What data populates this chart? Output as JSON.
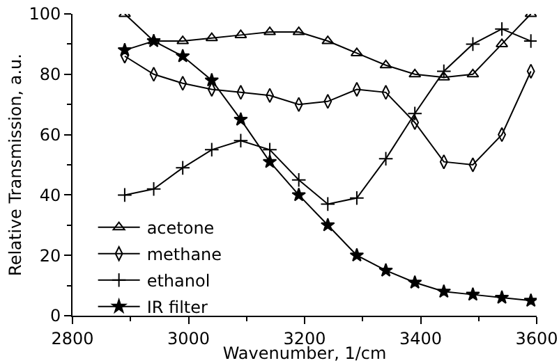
{
  "chart_data": {
    "type": "line",
    "xlabel": "Wavenumber, 1/cm",
    "ylabel": "Relative Transmission, a.u.",
    "x": [
      2890,
      2940,
      2990,
      3040,
      3090,
      3140,
      3190,
      3240,
      3290,
      3340,
      3390,
      3440,
      3490,
      3540,
      3590
    ],
    "series": [
      {
        "name": "acetone",
        "color": "#000000",
        "marker": "triangle",
        "values": [
          100,
          91,
          91,
          92,
          93,
          94,
          94,
          91,
          87,
          83,
          80,
          79,
          80,
          90,
          100
        ]
      },
      {
        "name": "methane",
        "color": "#000000",
        "marker": "diamond",
        "values": [
          86,
          80,
          77,
          75,
          74,
          73,
          70,
          71,
          75,
          74,
          64,
          51,
          50,
          60,
          81
        ]
      },
      {
        "name": "ethanol",
        "color": "#000000",
        "marker": "cross",
        "values": [
          40,
          42,
          49,
          55,
          58,
          55,
          45,
          37,
          39,
          52,
          67,
          81,
          90,
          95,
          91
        ]
      },
      {
        "name": "IR filter",
        "color": "#000000",
        "marker": "star",
        "values": [
          88,
          91,
          86,
          78,
          65,
          51,
          40,
          30,
          20,
          15,
          11,
          8,
          7,
          6,
          5
        ]
      }
    ],
    "xlim": [
      2800,
      3600
    ],
    "xticks": [
      2800,
      3000,
      3200,
      3400,
      3600
    ],
    "ylim": [
      0,
      100
    ],
    "yticks": [
      0,
      20,
      40,
      60,
      80,
      100
    ],
    "grid": false,
    "legend": "left",
    "line_style": "solid"
  }
}
